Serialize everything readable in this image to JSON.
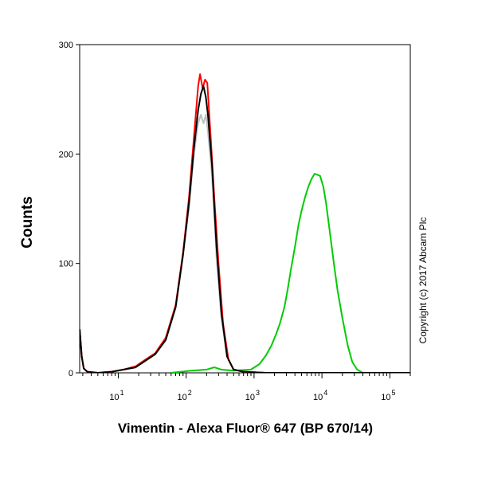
{
  "chart_data": {
    "type": "line",
    "title": "",
    "xlabel": "Vimentin - Alexa Fluor® 647 (BP 670/14)",
    "ylabel": "Counts",
    "x_scale": "log",
    "xlim": [
      2.7,
      200000
    ],
    "ylim": [
      0,
      300
    ],
    "y_ticks": [
      0,
      100,
      200,
      300
    ],
    "x_ticks": [
      {
        "base": "10",
        "exp": "1",
        "value": 10
      },
      {
        "base": "10",
        "exp": "2",
        "value": 100
      },
      {
        "base": "10",
        "exp": "3",
        "value": 1000
      },
      {
        "base": "10",
        "exp": "4",
        "value": 10000
      },
      {
        "base": "10",
        "exp": "5",
        "value": 100000
      }
    ],
    "grid": false,
    "legend": "none",
    "annotation": "Copyright (c) 2017 Abcam Plc",
    "series": [
      {
        "color": "#c0c0c0",
        "points": [
          [
            2.7,
            40
          ],
          [
            2.9,
            15
          ],
          [
            3.1,
            4
          ],
          [
            3.5,
            1
          ],
          [
            5,
            0
          ],
          [
            8,
            1
          ],
          [
            12,
            3
          ],
          [
            18,
            5
          ],
          [
            25,
            11
          ],
          [
            35,
            17
          ],
          [
            50,
            30
          ],
          [
            70,
            60
          ],
          [
            90,
            110
          ],
          [
            110,
            150
          ],
          [
            130,
            200
          ],
          [
            150,
            228
          ],
          [
            165,
            236
          ],
          [
            180,
            228
          ],
          [
            195,
            236
          ],
          [
            210,
            220
          ],
          [
            240,
            180
          ],
          [
            280,
            105
          ],
          [
            330,
            50
          ],
          [
            400,
            15
          ],
          [
            500,
            3
          ],
          [
            700,
            1
          ],
          [
            1500,
            0
          ],
          [
            200000,
            0
          ]
        ]
      },
      {
        "color": "#ff0000",
        "points": [
          [
            2.7,
            40
          ],
          [
            2.9,
            15
          ],
          [
            3.1,
            4
          ],
          [
            3.5,
            1
          ],
          [
            5,
            0
          ],
          [
            8,
            1
          ],
          [
            12,
            3
          ],
          [
            18,
            6
          ],
          [
            25,
            12
          ],
          [
            35,
            18
          ],
          [
            50,
            32
          ],
          [
            70,
            62
          ],
          [
            90,
            110
          ],
          [
            110,
            160
          ],
          [
            130,
            215
          ],
          [
            150,
            262
          ],
          [
            160,
            273
          ],
          [
            175,
            260
          ],
          [
            190,
            268
          ],
          [
            205,
            265
          ],
          [
            230,
            215
          ],
          [
            260,
            160
          ],
          [
            300,
            100
          ],
          [
            350,
            45
          ],
          [
            420,
            12
          ],
          [
            500,
            3
          ],
          [
            700,
            1
          ],
          [
            1500,
            0
          ],
          [
            200000,
            0
          ]
        ]
      },
      {
        "color": "#00cc00",
        "points": [
          [
            60,
            0
          ],
          [
            120,
            2
          ],
          [
            200,
            3
          ],
          [
            260,
            5
          ],
          [
            330,
            3
          ],
          [
            500,
            2
          ],
          [
            900,
            3
          ],
          [
            1200,
            8
          ],
          [
            1500,
            16
          ],
          [
            1800,
            25
          ],
          [
            2100,
            35
          ],
          [
            2400,
            45
          ],
          [
            2800,
            60
          ],
          [
            3100,
            75
          ],
          [
            3500,
            95
          ],
          [
            4000,
            115
          ],
          [
            4500,
            135
          ],
          [
            5000,
            148
          ],
          [
            5600,
            160
          ],
          [
            6300,
            170
          ],
          [
            7000,
            177
          ],
          [
            7800,
            182
          ],
          [
            8600,
            181
          ],
          [
            9400,
            180
          ],
          [
            10500,
            170
          ],
          [
            11500,
            155
          ],
          [
            13000,
            130
          ],
          [
            15000,
            100
          ],
          [
            17000,
            75
          ],
          [
            20000,
            50
          ],
          [
            24000,
            25
          ],
          [
            28000,
            10
          ],
          [
            33000,
            3
          ],
          [
            40000,
            0
          ],
          [
            200000,
            0
          ]
        ]
      },
      {
        "color": "#000000",
        "points": [
          [
            2.7,
            40
          ],
          [
            2.9,
            15
          ],
          [
            3.1,
            4
          ],
          [
            3.5,
            1
          ],
          [
            5,
            0
          ],
          [
            8,
            1
          ],
          [
            12,
            3
          ],
          [
            18,
            5
          ],
          [
            25,
            11
          ],
          [
            35,
            17
          ],
          [
            50,
            30
          ],
          [
            70,
            60
          ],
          [
            90,
            108
          ],
          [
            110,
            155
          ],
          [
            130,
            205
          ],
          [
            150,
            240
          ],
          [
            165,
            255
          ],
          [
            180,
            262
          ],
          [
            195,
            252
          ],
          [
            210,
            235
          ],
          [
            240,
            190
          ],
          [
            280,
            115
          ],
          [
            330,
            55
          ],
          [
            400,
            15
          ],
          [
            500,
            3
          ],
          [
            700,
            1
          ],
          [
            1500,
            0
          ],
          [
            200000,
            0
          ]
        ]
      }
    ]
  }
}
